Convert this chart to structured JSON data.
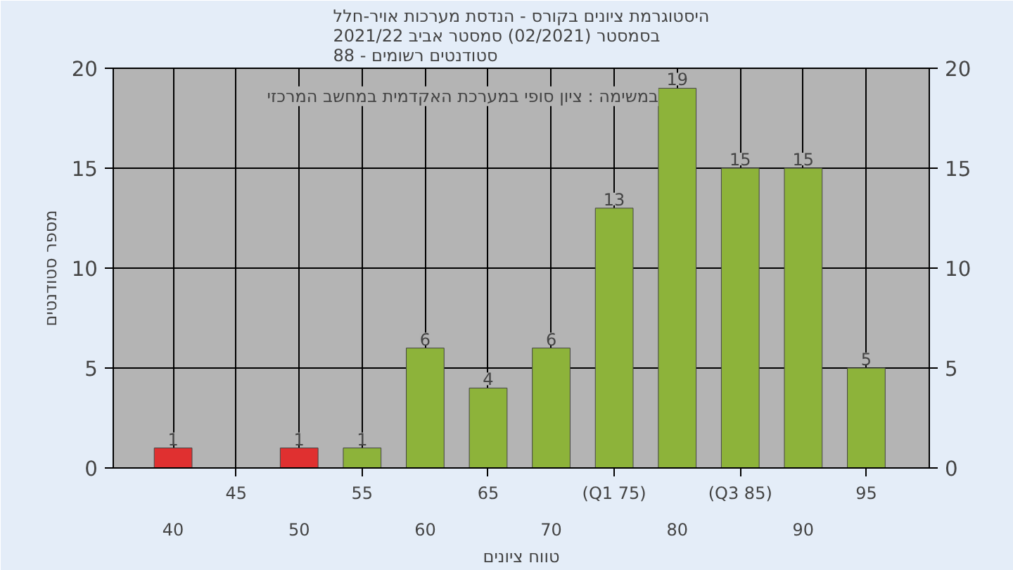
{
  "chart_data": {
    "type": "bar",
    "title": "היסטוגרמת ציונים בקורס - הנדסת מערכות אויר-חלל\nבסמסטר  (02/2021)  סמסטר אביב 2021/22\nסטודנטים רשומים - 88",
    "xlabel": "טווח ציונים",
    "ylabel": "מספר סטודנטים",
    "annotations": [
      "במשימה : ציון סופי במערכת האקדמית במחשב המרכזי"
    ],
    "categories": [
      "40",
      "45",
      "50",
      "55",
      "60",
      "65",
      "70",
      "(Q1 75)",
      "80",
      "(Q3 85)",
      "90",
      "95"
    ],
    "series": [
      {
        "colors": [
          "#e03030",
          "#8db33a",
          "#e03030",
          "#8db33a",
          "#8db33a",
          "#8db33a",
          "#8db33a",
          "#8db33a",
          "#8db33a",
          "#8db33a",
          "#8db33a",
          "#8db33a"
        ],
        "values": [
          1,
          null,
          1,
          1,
          6,
          4,
          6,
          13,
          19,
          15,
          15,
          5
        ]
      }
    ],
    "ylim": [
      0,
      20
    ],
    "yticks": [
      0,
      5,
      10,
      15,
      20
    ],
    "y2lim": [
      0,
      20
    ],
    "y2ticks": [
      0,
      5,
      10,
      15,
      20
    ],
    "grid": true,
    "data_labels": true
  }
}
